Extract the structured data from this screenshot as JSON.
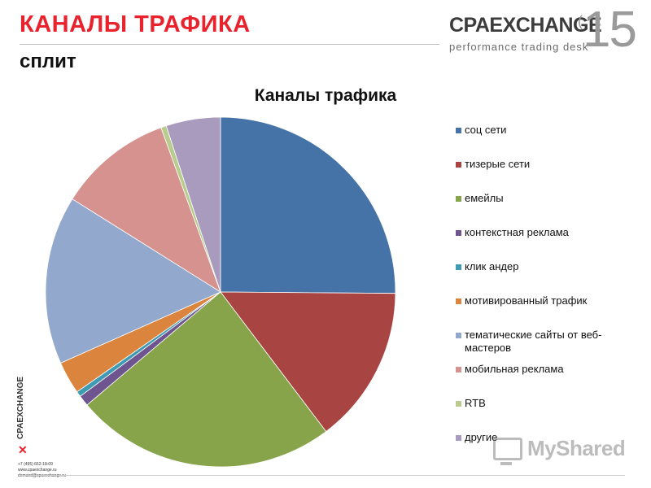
{
  "header": {
    "title": "КАНАЛЫ ТРАФИКА",
    "subtitle": "сплит",
    "brand_name": "CPAEXCHANGE",
    "brand_tagline": "performance trading desk",
    "brand_year": "15",
    "brand_year_tick": "("
  },
  "sidebar": {
    "brand": "CPAEXCHANGE",
    "mark": "✕",
    "phone": "+7 (495) 662-18-09",
    "site": "www.cpaexchange.ru",
    "email": "demand@cpaexchange.ru"
  },
  "watermark": {
    "text": "MyShared"
  },
  "colors": {
    "title_red": "#e8232e"
  },
  "chart_data": {
    "type": "pie",
    "title": "Каналы трафика",
    "legend_position": "right",
    "start_angle_deg": 0,
    "direction": "clockwise",
    "slices": [
      {
        "label": "соц сети",
        "value": 25.0,
        "color": "#4573a7"
      },
      {
        "label": "тизерые сети",
        "value": 14.5,
        "color": "#a84542"
      },
      {
        "label": "емейлы",
        "value": 24.0,
        "color": "#88a44a"
      },
      {
        "label": "контекстная реклама",
        "value": 1.0,
        "color": "#6f558f"
      },
      {
        "label": "клик андер",
        "value": 0.5,
        "color": "#3f9bb3"
      },
      {
        "label": "мотивированный трафик",
        "value": 3.0,
        "color": "#db843d"
      },
      {
        "label": "тематические сайты от веб-мастеров",
        "value": 15.5,
        "color": "#92a8cd"
      },
      {
        "label": "мобильная реклама",
        "value": 10.5,
        "color": "#d6928f"
      },
      {
        "label": "RTB",
        "value": 0.5,
        "color": "#b7cc8d"
      },
      {
        "label": "другие",
        "value": 5.0,
        "color": "#a89bbe"
      }
    ]
  }
}
